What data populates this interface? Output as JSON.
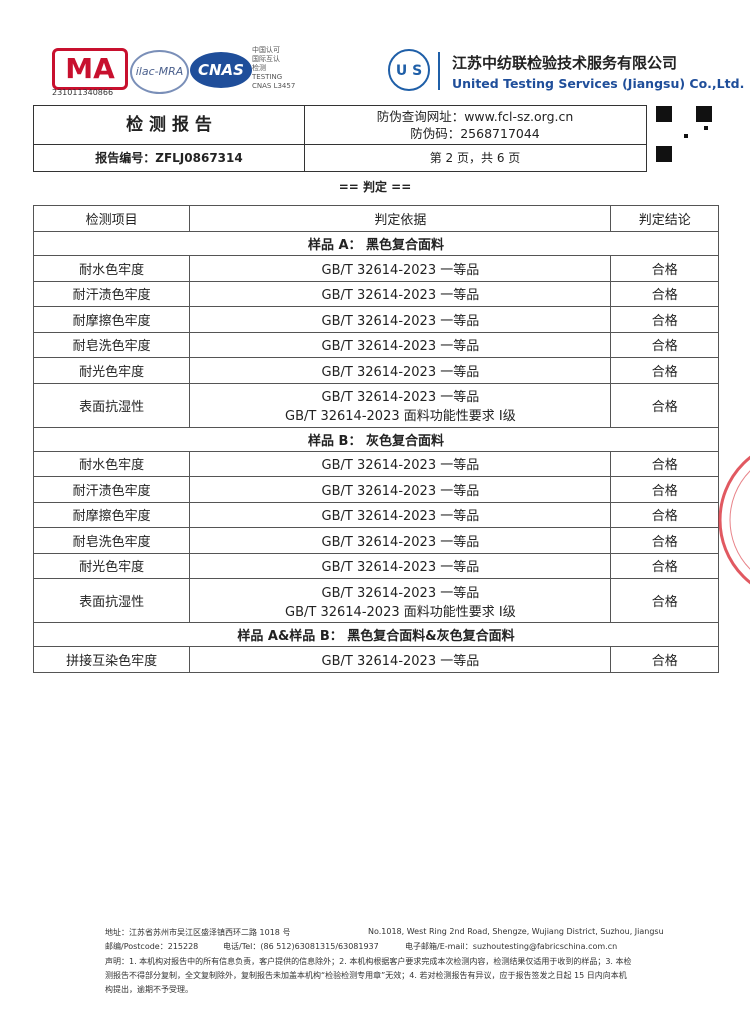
{
  "logos": {
    "cma_number": "231011340866",
    "ilac": "ilac-MRA",
    "cnas": "CNAS",
    "cnas_lines": [
      "中国认可",
      "国际互认",
      "检测",
      "TESTING",
      "CNAS L3457"
    ],
    "company_cn": "江苏中纺联检验技术服务有限公司",
    "company_en": "United Testing Services (Jiangsu) Co.,Ltd."
  },
  "header": {
    "title": "检 测 报 告",
    "query_url": "防伪查询网址：www.fcl-sz.org.cn",
    "code": "防伪码：2568717044",
    "report_no": "报告编号：ZFLJ0867314",
    "page": "第 2 页，共 6 页"
  },
  "section_title": "== 判定 ==",
  "table": {
    "header": [
      "检测项目",
      "判定依据",
      "判定结论"
    ],
    "groups": [
      {
        "title": "样品 A：  黑色复合面料",
        "rows": [
          {
            "item": "耐水色牢度",
            "basis": [
              "GB/T 32614-2023  一等品"
            ],
            "result": "合格"
          },
          {
            "item": "耐汗渍色牢度",
            "basis": [
              "GB/T 32614-2023  一等品"
            ],
            "result": "合格"
          },
          {
            "item": "耐摩擦色牢度",
            "basis": [
              "GB/T 32614-2023  一等品"
            ],
            "result": "合格"
          },
          {
            "item": "耐皂洗色牢度",
            "basis": [
              "GB/T 32614-2023  一等品"
            ],
            "result": "合格"
          },
          {
            "item": "耐光色牢度",
            "basis": [
              "GB/T 32614-2023  一等品"
            ],
            "result": "合格"
          },
          {
            "item": "表面抗湿性",
            "basis": [
              "GB/T 32614-2023  一等品",
              "GB/T 32614-2023  面料功能性要求   Ⅰ级"
            ],
            "result": "合格"
          }
        ]
      },
      {
        "title": "样品 B：  灰色复合面料",
        "rows": [
          {
            "item": "耐水色牢度",
            "basis": [
              "GB/T 32614-2023  一等品"
            ],
            "result": "合格"
          },
          {
            "item": "耐汗渍色牢度",
            "basis": [
              "GB/T 32614-2023  一等品"
            ],
            "result": "合格"
          },
          {
            "item": "耐摩擦色牢度",
            "basis": [
              "GB/T 32614-2023  一等品"
            ],
            "result": "合格"
          },
          {
            "item": "耐皂洗色牢度",
            "basis": [
              "GB/T 32614-2023  一等品"
            ],
            "result": "合格"
          },
          {
            "item": "耐光色牢度",
            "basis": [
              "GB/T 32614-2023  一等品"
            ],
            "result": "合格"
          },
          {
            "item": "表面抗湿性",
            "basis": [
              "GB/T 32614-2023  一等品",
              "GB/T 32614-2023  面料功能性要求   Ⅰ级"
            ],
            "result": "合格"
          }
        ]
      },
      {
        "title": "样品 A&样品 B：  黑色复合面料&灰色复合面料",
        "rows": [
          {
            "item": "拼接互染色牢度",
            "basis": [
              "GB/T 32614-2023  一等品"
            ],
            "result": "合格"
          }
        ]
      }
    ]
  },
  "footer": {
    "address_cn": "地址：江苏省苏州市吴江区盛泽镇西环二路 1018 号",
    "address_en": "No.1018, West Ring 2nd Road, Shengze, Wujiang District, Suzhou, Jiangsu",
    "postcode": "邮编/Postcode：215228",
    "tel": "电话/Tel：(86 512)63081315/63081937",
    "email": "电子邮箱/E-mail：suzhoutesting@fabricschina.com.cn",
    "statement": [
      "声明：1. 本机构对报告中的所有信息负责，客户提供的信息除外；2. 本机构根据客户要求完成本次检测内容，检测结果仅适用于收到的样品；3. 本检",
      "测报告不得部分复制，全文复制除外，复制报告未加盖本机构“检验检测专用章”无效；4. 若对检测报告有异议，应于报告签发之日起 15 日内向本机",
      "构提出，逾期不予受理。"
    ]
  }
}
